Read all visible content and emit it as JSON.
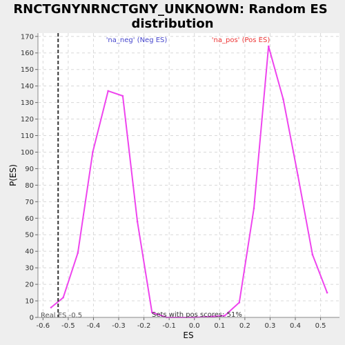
{
  "chart_data": {
    "type": "line",
    "title_line1": "RNCTGNYNRNCTGNY_UNKNOWN: Random ES",
    "title_line2": "distribution",
    "xlabel": "ES",
    "ylabel": "P(ES)",
    "xlim": [
      -0.62,
      0.575
    ],
    "ylim": [
      0,
      172
    ],
    "xticks": [
      -0.6,
      -0.5,
      -0.4,
      -0.3,
      -0.2,
      -0.1,
      0.0,
      0.1,
      0.2,
      0.3,
      0.4,
      0.5
    ],
    "xtick_labels": [
      "-0.6",
      "-0.5",
      "-0.4",
      "-0.3",
      "-0.2",
      "-0.1",
      "0.0",
      "0.1",
      "0.2",
      "0.3",
      "0.4",
      "0.5"
    ],
    "yticks": [
      0,
      10,
      20,
      30,
      40,
      50,
      60,
      70,
      80,
      90,
      100,
      110,
      120,
      130,
      140,
      150,
      160,
      170
    ],
    "ytick_labels": [
      "0",
      "10",
      "20",
      "30",
      "40",
      "50",
      "60",
      "70",
      "80",
      "90",
      "100",
      "110",
      "120",
      "130",
      "140",
      "150",
      "160",
      "170"
    ],
    "grid": true,
    "series": [
      {
        "color": "#ee44ee",
        "x": [
          -0.568,
          -0.52,
          -0.462,
          -0.403,
          -0.342,
          -0.284,
          -0.226,
          -0.168,
          -0.11,
          0.0,
          0.12,
          0.178,
          0.236,
          0.294,
          0.352,
          0.41,
          0.468,
          0.526
        ],
        "y": [
          6,
          12,
          39,
          100,
          137,
          134,
          58,
          3,
          0,
          0,
          1,
          9,
          66,
          164,
          132,
          86,
          38,
          15
        ]
      }
    ],
    "annotations": {
      "neg_label": "'na_neg' (Neg ES)",
      "neg_color": "#4444cc",
      "pos_label": "'na_pos' (Pos ES)",
      "pos_color": "#ee3333",
      "real_es_label": "Real ES -0.5",
      "real_es_x": -0.54,
      "sets_pos_label": "Sets with pos scores: 51%"
    }
  }
}
